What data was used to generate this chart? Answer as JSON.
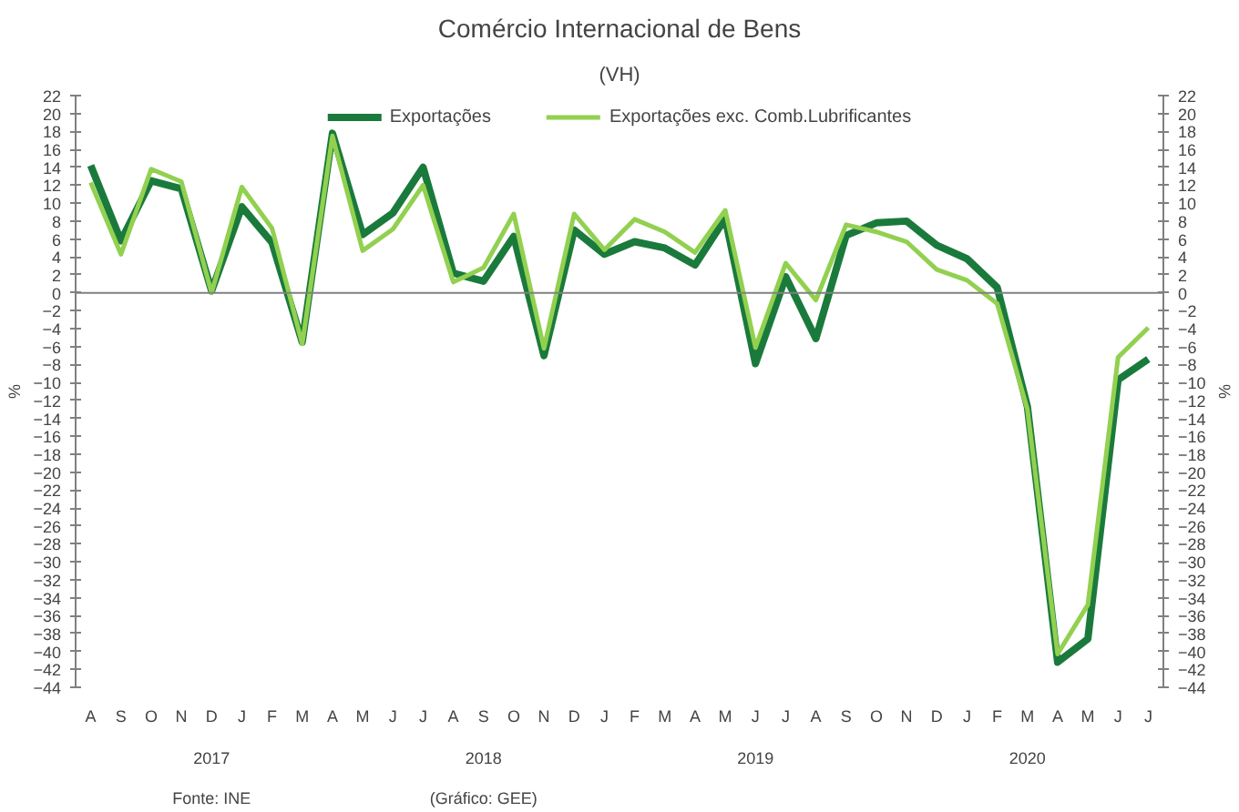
{
  "chart_data": {
    "type": "line",
    "title": "Comércio Internacional de Bens",
    "subtitle": "(VH)",
    "ylabel": "%",
    "y2label": "%",
    "categories": [
      "A",
      "S",
      "O",
      "N",
      "D",
      "J",
      "F",
      "M",
      "A",
      "M",
      "J",
      "J",
      "A",
      "S",
      "O",
      "N",
      "D",
      "J",
      "F",
      "M",
      "A",
      "M",
      "J",
      "J",
      "A",
      "S",
      "O",
      "N",
      "D",
      "J",
      "F",
      "M",
      "A",
      "M",
      "J",
      "J"
    ],
    "ylim": [
      -44,
      22
    ],
    "yticks": [
      -44,
      -42,
      -40,
      -38,
      -36,
      -34,
      -32,
      -30,
      -28,
      -26,
      -24,
      -22,
      -20,
      -18,
      -16,
      -14,
      -12,
      -10,
      -8,
      -6,
      -4,
      -2,
      0,
      2,
      4,
      6,
      8,
      10,
      12,
      14,
      16,
      18,
      20,
      22
    ],
    "y2lim": [
      -44,
      22
    ],
    "y2ticks": [
      -44,
      -42,
      -40,
      -38,
      -36,
      -34,
      -32,
      -30,
      -28,
      -26,
      -24,
      -22,
      -20,
      -18,
      -16,
      -14,
      -12,
      -10,
      -8,
      -6,
      -4,
      -2,
      0,
      2,
      4,
      6,
      8,
      10,
      12,
      14,
      16,
      18,
      20,
      22
    ],
    "legend": "top",
    "line_style": "solid",
    "ref_lines": [
      {
        "axis": "y",
        "value": 0,
        "color": "#808080"
      }
    ],
    "series": [
      {
        "name": "Exportações",
        "color": "#1a7a3c",
        "values": [
          14.2,
          5.8,
          12.5,
          11.6,
          0.2,
          9.6,
          5.6,
          -5.5,
          17.8,
          6.5,
          8.9,
          14.0,
          2.2,
          1.3,
          6.3,
          -7.0,
          7.0,
          4.3,
          5.7,
          5.0,
          3.1,
          8.3,
          -7.9,
          1.8,
          -5.1,
          6.4,
          7.8,
          8.0,
          5.3,
          3.8,
          0.6,
          -12.7,
          -41.2,
          -38.6,
          -9.7,
          -7.4
        ]
      },
      {
        "name": "Exportações exc. Comb.Lubrificantes",
        "color": "#92d050",
        "values": [
          12.3,
          4.3,
          13.8,
          12.4,
          0.0,
          11.8,
          7.2,
          -5.7,
          17.5,
          4.7,
          7.1,
          12.0,
          1.2,
          2.8,
          8.8,
          -6.2,
          8.8,
          4.8,
          8.2,
          6.8,
          4.5,
          9.2,
          -6.1,
          3.3,
          -0.8,
          7.6,
          6.8,
          5.7,
          2.6,
          1.4,
          -1.2,
          -13.0,
          -40.3,
          -34.8,
          -7.2,
          -3.9
        ]
      }
    ],
    "annotations": [
      "2017",
      "2018",
      "2019",
      "2020",
      "Fonte: INE",
      "(Gráfico: GEE)"
    ]
  }
}
